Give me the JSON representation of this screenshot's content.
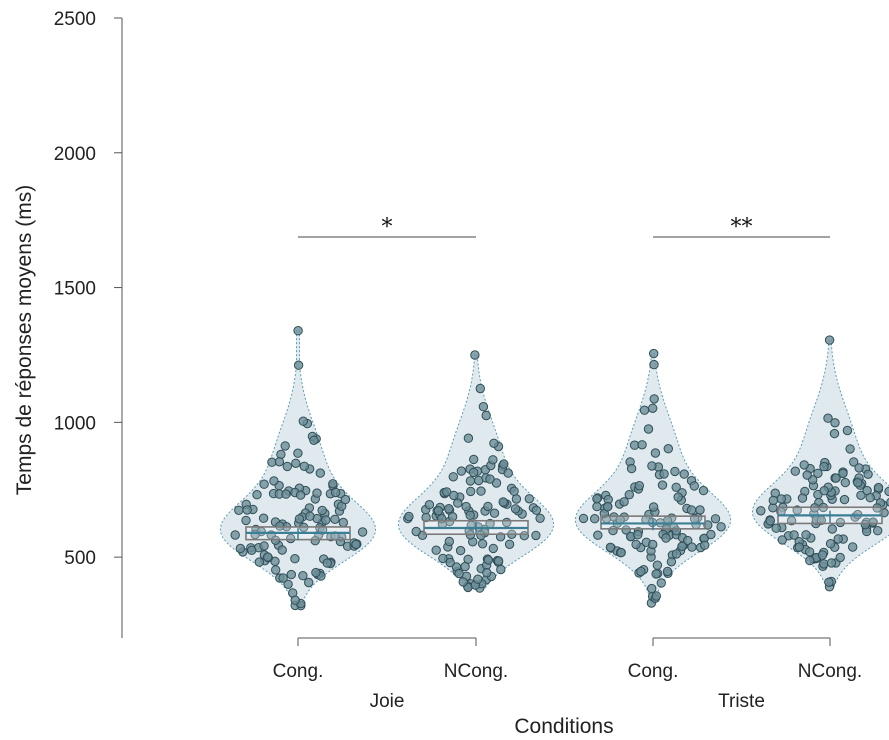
{
  "chart_data": {
    "type": "scatter",
    "subtype": "violin-box-beeswarm",
    "title": "",
    "ylabel": "Temps de réponses moyens (ms)",
    "xlabel": "Conditions",
    "ylim": [
      200,
      2500
    ],
    "yticks": [
      "500",
      "1000",
      "1500",
      "2000",
      "2500"
    ],
    "groups": [
      {
        "name": "Joie",
        "categories": [
          "Cong.",
          "NCong."
        ],
        "significance": "*"
      },
      {
        "name": "Triste",
        "categories": [
          "Cong.",
          "NCong."
        ],
        "significance": "**"
      }
    ],
    "series": [
      {
        "group": "Joie",
        "name": "Cong.",
        "q1": 565,
        "median": 590,
        "mean": 585,
        "q3": 612,
        "min": 320,
        "max": 1340
      },
      {
        "group": "Joie",
        "name": "NCong.",
        "q1": 585,
        "median": 608,
        "mean": 610,
        "q3": 635,
        "min": 385,
        "max": 1250
      },
      {
        "group": "Triste",
        "name": "Cong.",
        "q1": 605,
        "median": 625,
        "mean": 622,
        "q3": 652,
        "min": 330,
        "max": 1255
      },
      {
        "group": "Triste",
        "name": "NCong.",
        "q1": 625,
        "median": 655,
        "mean": 650,
        "q3": 685,
        "min": 390,
        "max": 1305
      }
    ],
    "grid": false,
    "colors": {
      "violin_fill": "#d5e2e8",
      "violin_edge": "#5a9fb5",
      "point_fill": "#6d8f98",
      "point_edge": "#2f4e57",
      "median_line": "#3b7f96",
      "box_edge": "#7a7a7a"
    }
  }
}
